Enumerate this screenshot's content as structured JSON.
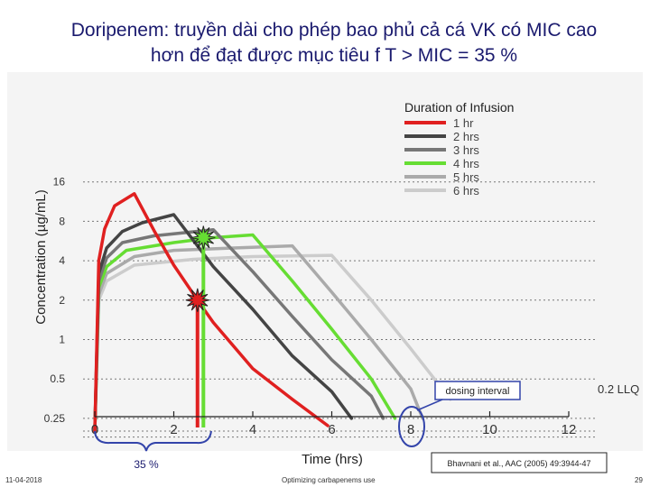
{
  "slide": {
    "title_line1": "Doripenem: truyền dài cho phép bao phủ cả cá VK có MIC cao",
    "title_line2": "hơn để đạt được mục tiêu f T > MIC = 35 %"
  },
  "footer": {
    "date": "11-04-2018",
    "center": "Optimizing carbapenems use",
    "page": "29"
  },
  "annotations": {
    "dosing_interval": "dosing interval",
    "percent_35": "35 %",
    "llq": "0.2 LLQ",
    "citation": "Bhavnani et al., AAC (2005) 49:3944-47"
  },
  "colors": {
    "red": "#e02020",
    "green": "#66dd33",
    "dark": "#333333",
    "title": "#1a1a6e",
    "bracket": "#3344aa"
  },
  "chart_data": {
    "type": "line",
    "title": "",
    "xlabel": "Time  (hrs)",
    "ylabel": "Concentration  (µg/mL)",
    "xlim": [
      0,
      12
    ],
    "y_scale": "log2",
    "ylim": [
      0.2,
      24
    ],
    "x_ticks": [
      0,
      2,
      4,
      6,
      8,
      10,
      12
    ],
    "y_ticks": [
      0.25,
      0.5,
      1,
      2,
      4,
      8,
      16
    ],
    "y_tick_labels": [
      "0.25",
      "0.5",
      "1",
      "2",
      "4",
      "8",
      "16"
    ],
    "grid": "horizontal dotted",
    "legend_title": "Duration of Infusion",
    "legend_position": "top-right",
    "series": [
      {
        "name": "1 hr",
        "color": "#e02020",
        "points": [
          [
            0,
            0.2
          ],
          [
            0.1,
            4
          ],
          [
            0.25,
            7
          ],
          [
            0.5,
            10.5
          ],
          [
            1,
            13
          ],
          [
            1.5,
            6.8
          ],
          [
            2,
            3.7
          ],
          [
            2.6,
            2.0
          ],
          [
            3,
            1.35
          ],
          [
            4,
            0.6
          ],
          [
            5,
            0.35
          ],
          [
            5.9,
            0.22
          ]
        ]
      },
      {
        "name": "2 hrs",
        "color": "#444444",
        "points": [
          [
            0,
            0.2
          ],
          [
            0.1,
            3.2
          ],
          [
            0.3,
            5
          ],
          [
            0.7,
            6.7
          ],
          [
            1.2,
            7.8
          ],
          [
            2,
            9.0
          ],
          [
            3,
            3.6
          ],
          [
            4,
            1.7
          ],
          [
            5,
            0.75
          ],
          [
            6,
            0.4
          ],
          [
            6.5,
            0.25
          ]
        ]
      },
      {
        "name": "3 hrs",
        "color": "#777777",
        "points": [
          [
            0,
            0.2
          ],
          [
            0.1,
            2.8
          ],
          [
            0.3,
            4.2
          ],
          [
            0.7,
            5.5
          ],
          [
            1.5,
            6.2
          ],
          [
            3,
            6.9
          ],
          [
            4,
            3.3
          ],
          [
            5,
            1.5
          ],
          [
            6,
            0.7
          ],
          [
            7,
            0.37
          ],
          [
            7.3,
            0.25
          ]
        ]
      },
      {
        "name": "4 hrs",
        "color": "#66dd33",
        "points": [
          [
            0,
            0.2
          ],
          [
            0.1,
            2.5
          ],
          [
            0.3,
            3.6
          ],
          [
            0.8,
            4.8
          ],
          [
            2,
            5.5
          ],
          [
            3,
            6.0
          ],
          [
            4,
            6.3
          ],
          [
            5,
            2.8
          ],
          [
            6,
            1.2
          ],
          [
            7,
            0.5
          ],
          [
            7.6,
            0.25
          ]
        ]
      },
      {
        "name": "5 hrs",
        "color": "#aaaaaa",
        "points": [
          [
            0,
            0.2
          ],
          [
            0.1,
            2.2
          ],
          [
            0.3,
            3.2
          ],
          [
            1,
            4.3
          ],
          [
            2,
            4.8
          ],
          [
            3.5,
            5.0
          ],
          [
            5,
            5.2
          ],
          [
            6,
            2.3
          ],
          [
            7,
            1.0
          ],
          [
            8,
            0.42
          ],
          [
            8.3,
            0.25
          ]
        ]
      },
      {
        "name": "6 hrs",
        "color": "#cccccc",
        "points": [
          [
            0,
            0.2
          ],
          [
            0.1,
            2.0
          ],
          [
            0.3,
            2.8
          ],
          [
            1,
            3.7
          ],
          [
            2.5,
            4.1
          ],
          [
            4,
            4.3
          ],
          [
            6,
            4.4
          ],
          [
            7,
            2.0
          ],
          [
            8,
            0.85
          ],
          [
            9,
            0.35
          ]
        ]
      }
    ],
    "markers": [
      {
        "series": "1 hr",
        "x": 2.6,
        "y": 2.0,
        "color": "#e02020"
      },
      {
        "series": "4 hrs",
        "x": 2.75,
        "y": 6.0,
        "color": "#66dd33"
      }
    ]
  }
}
